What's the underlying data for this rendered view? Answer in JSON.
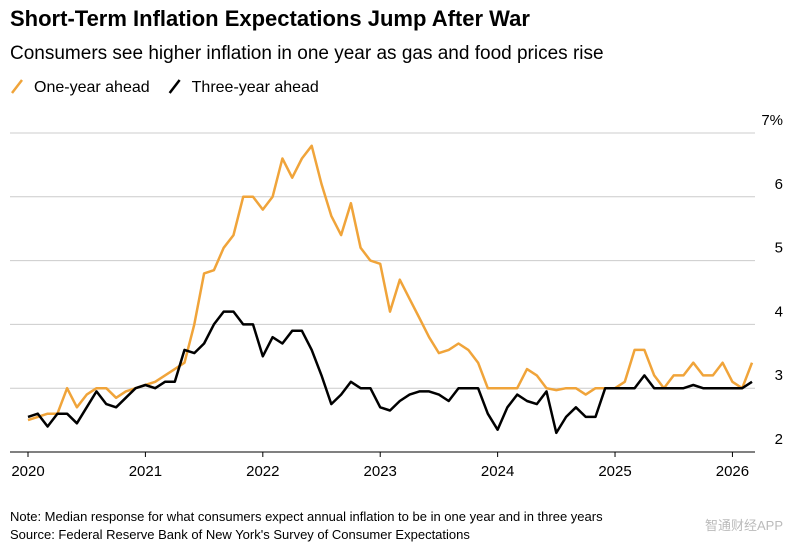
{
  "chart_data": {
    "type": "line",
    "title": "Short-Term Inflation Expectations Jump After War",
    "subtitle": "Consumers see higher inflation in one year as gas and food prices rise",
    "note": "Note: Median response for what consumers expect annual inflation to be in one year and in three years",
    "source": "Source: Federal Reserve Bank of New York's Survey of Consumer Expectations",
    "watermark": "智通财经APP",
    "categories": [
      "2020",
      null,
      null,
      null,
      null,
      null,
      null,
      null,
      null,
      null,
      null,
      null,
      "2021",
      null,
      null,
      null,
      null,
      null,
      null,
      null,
      null,
      null,
      null,
      null,
      "2022",
      null,
      null,
      null,
      null,
      null,
      null,
      null,
      null,
      null,
      null,
      null,
      "2023",
      null,
      null,
      null,
      null,
      null,
      null,
      null,
      null,
      null,
      null,
      null,
      "2024",
      null,
      null,
      null,
      null,
      null,
      null,
      null,
      null,
      null,
      null,
      null,
      "2025",
      null,
      null,
      null,
      null,
      null,
      null,
      null,
      null,
      null,
      null,
      null,
      "2026",
      null,
      null
    ],
    "series": [
      {
        "name": "One-year ahead",
        "color": "#f0a43a",
        "values": [
          2.5,
          2.55,
          2.6,
          2.6,
          3.0,
          2.7,
          2.9,
          3.0,
          3.0,
          2.85,
          2.95,
          3.0,
          3.05,
          3.1,
          3.2,
          3.3,
          3.4,
          4.0,
          4.8,
          4.85,
          5.2,
          5.4,
          6.0,
          6.0,
          5.8,
          6.0,
          6.6,
          6.3,
          6.6,
          6.8,
          6.2,
          5.7,
          5.4,
          5.9,
          5.2,
          5.0,
          4.95,
          4.2,
          4.7,
          4.4,
          4.1,
          3.8,
          3.55,
          3.6,
          3.7,
          3.6,
          3.4,
          3.0,
          3.0,
          3.0,
          3.0,
          3.3,
          3.2,
          3.0,
          2.97,
          3.0,
          3.0,
          2.9,
          3.0,
          3.0,
          3.0,
          3.1,
          3.6,
          3.6,
          3.2,
          3.0,
          3.2,
          3.2,
          3.4,
          3.2,
          3.2,
          3.4,
          3.1,
          3.0,
          3.4
        ]
      },
      {
        "name": "Three-year ahead",
        "color": "#000000",
        "values": [
          2.55,
          2.6,
          2.4,
          2.6,
          2.6,
          2.45,
          2.7,
          2.95,
          2.75,
          2.7,
          2.85,
          3.0,
          3.05,
          3.0,
          3.1,
          3.1,
          3.6,
          3.55,
          3.7,
          4.0,
          4.2,
          4.2,
          4.0,
          4.0,
          3.5,
          3.8,
          3.7,
          3.9,
          3.9,
          3.6,
          3.2,
          2.75,
          2.9,
          3.1,
          3.0,
          3.0,
          2.7,
          2.65,
          2.8,
          2.9,
          2.95,
          2.95,
          2.9,
          2.8,
          3.0,
          3.0,
          3.0,
          2.6,
          2.35,
          2.7,
          2.9,
          2.8,
          2.75,
          2.95,
          2.3,
          2.55,
          2.7,
          2.55,
          2.55,
          3.0,
          3.0,
          3.0,
          3.0,
          3.2,
          3.0,
          3.0,
          3.0,
          3.0,
          3.05,
          3.0,
          3.0,
          3.0,
          3.0,
          3.0,
          3.1
        ]
      }
    ],
    "ylim": [
      2,
      7
    ],
    "yticks": [
      2,
      3,
      4,
      5,
      6,
      {
        "value": 7,
        "label": "7%"
      }
    ],
    "grid": true
  }
}
